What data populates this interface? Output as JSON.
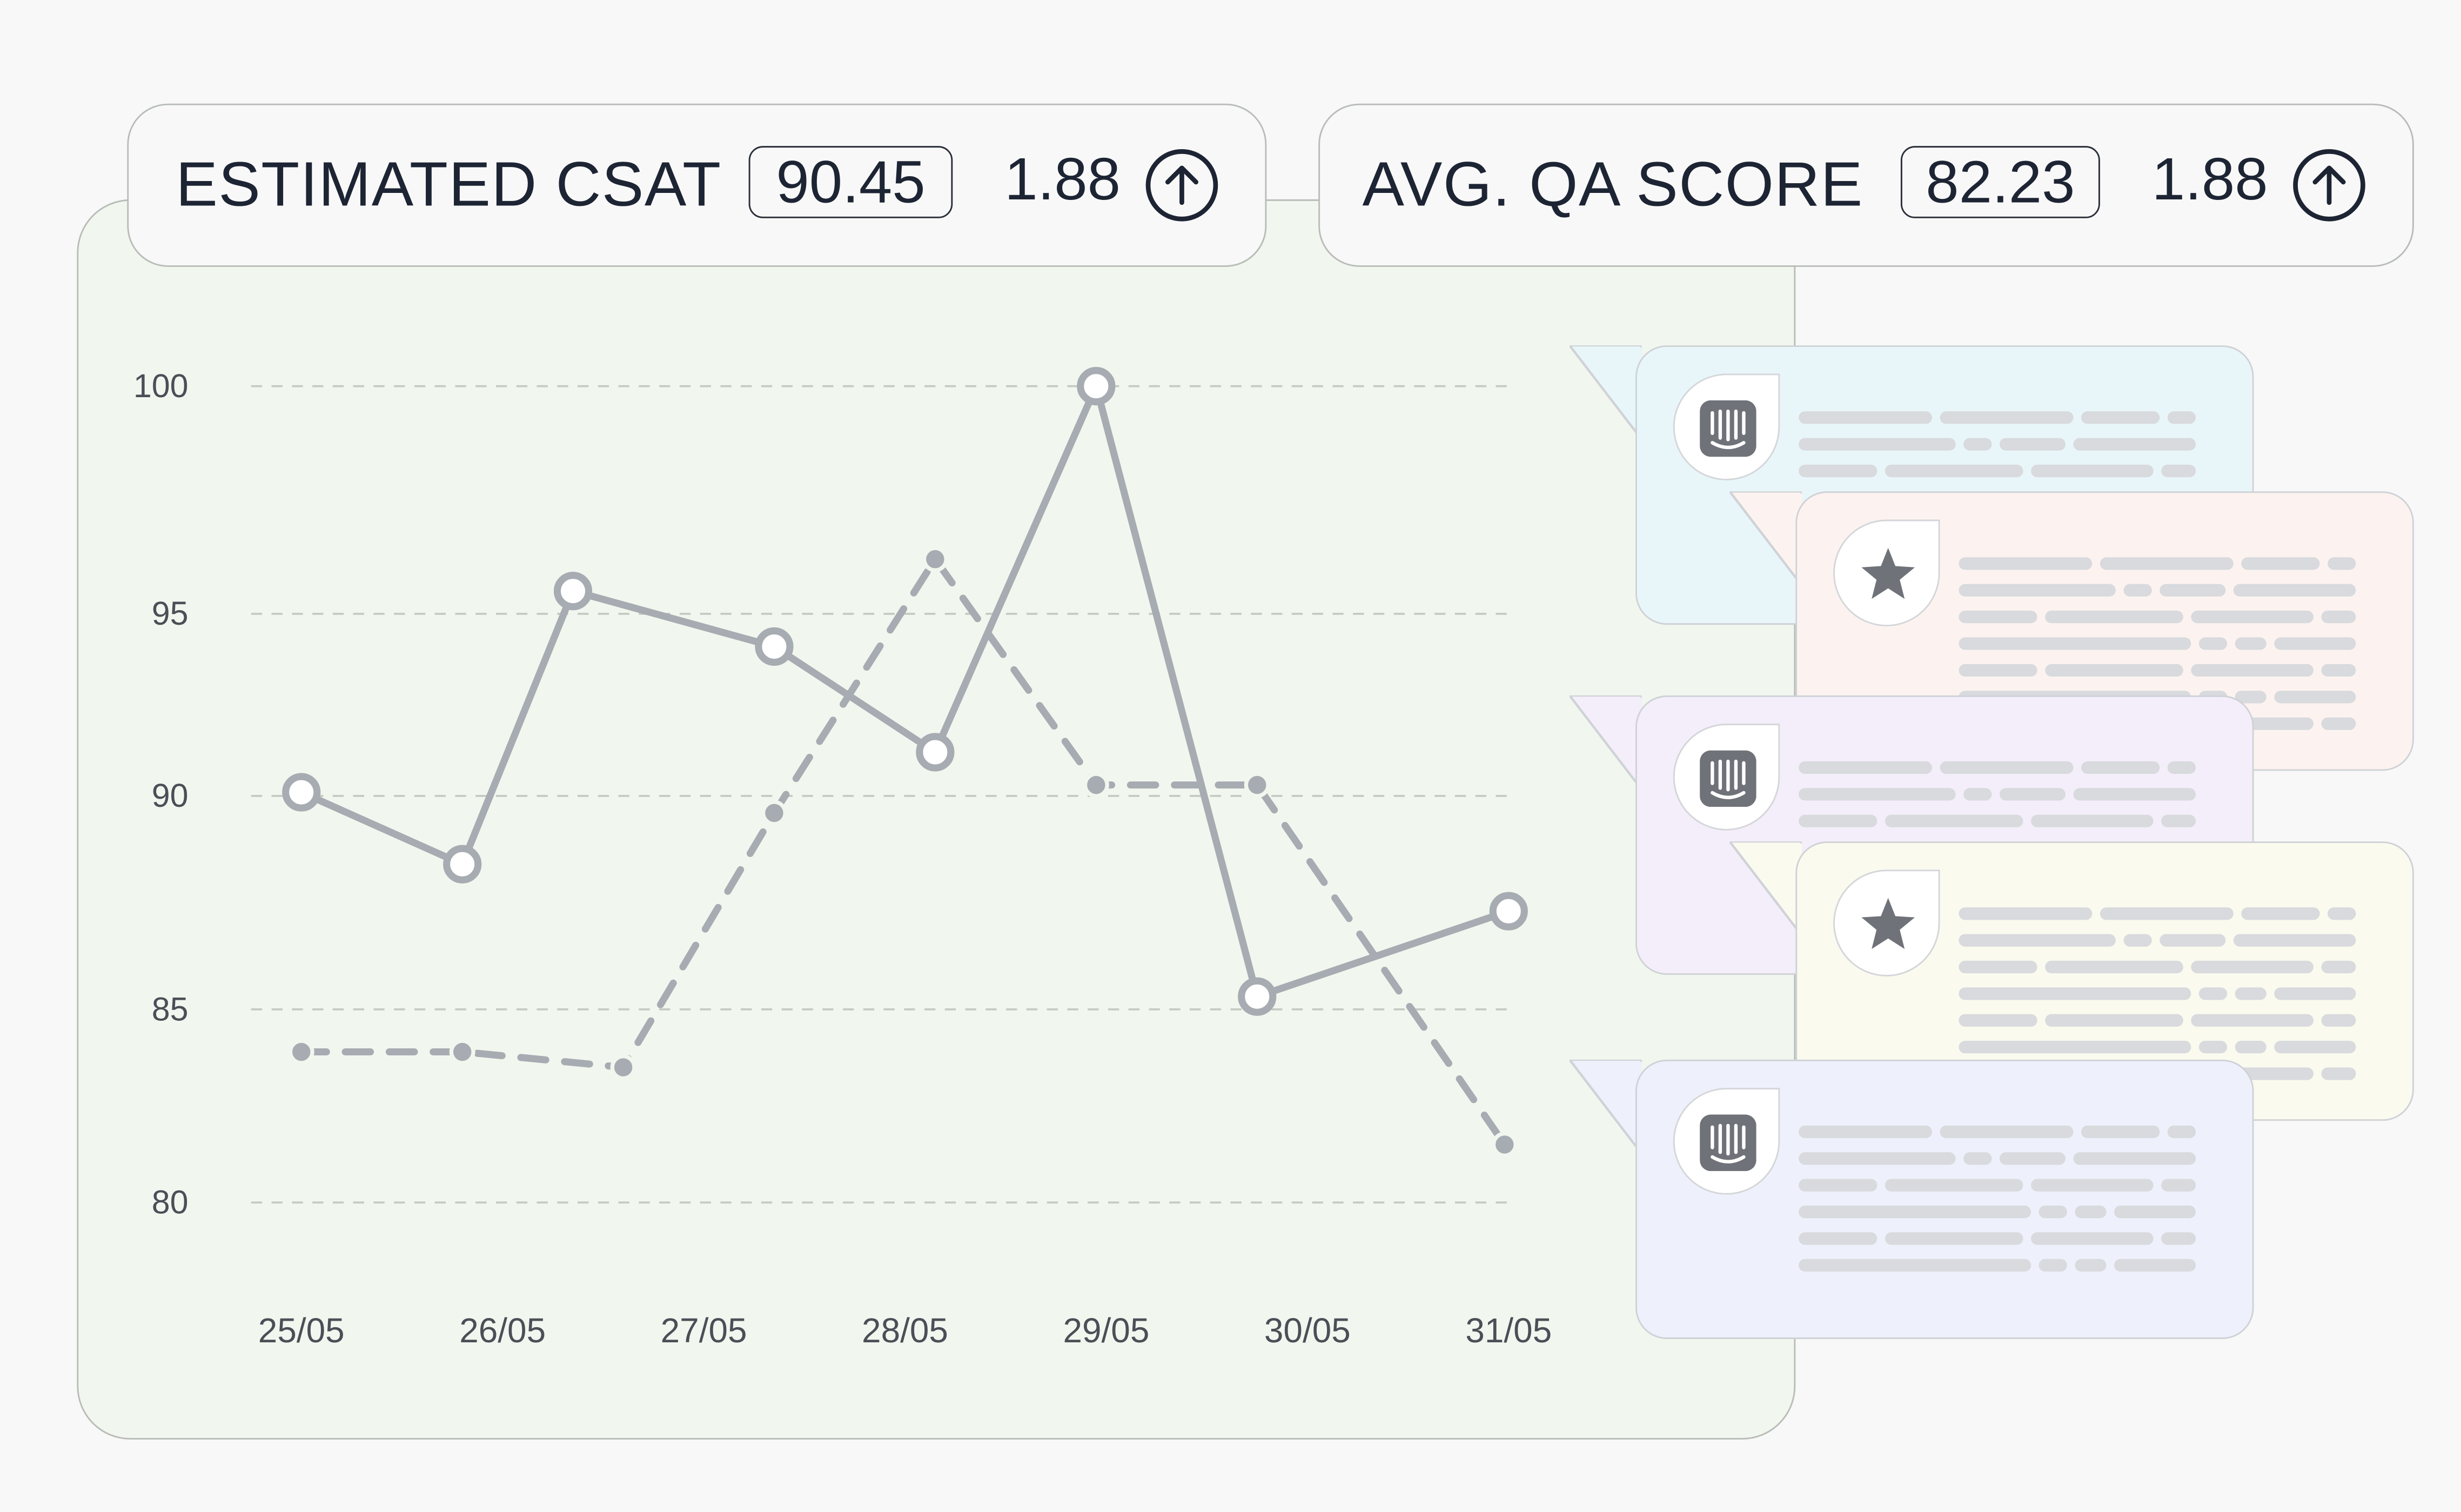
{
  "cards": {
    "csat": {
      "label": "ESTIMATED CSAT",
      "value": "90.45",
      "delta": "1.88"
    },
    "qa": {
      "label": "AVG. QA SCORE",
      "value": "82.23",
      "delta": "1.88"
    }
  },
  "colors": {
    "panel_bg": "#f1f7ee",
    "line": "#a7abb2",
    "grid": "#c4cbc2",
    "text": "#1d2433",
    "bubble_blue": "#e8f6fa",
    "bubble_peach": "#fcf3f0",
    "bubble_lilac": "#f4eefa",
    "bubble_cream": "#fafaef",
    "bubble_periwinkle": "#eef0fb"
  },
  "chart_data": {
    "type": "line",
    "title": "",
    "xlabel": "",
    "ylabel": "",
    "categories": [
      "25/05",
      "26/05",
      "27/05",
      "28/05",
      "29/05",
      "30/05",
      "31/05"
    ],
    "y_ticks": [
      "100",
      "95",
      "90",
      "85",
      "80"
    ],
    "ylim": [
      80,
      100
    ],
    "grid": true,
    "series": [
      {
        "name": "Estimated CSAT",
        "style": "solid",
        "x": [
          0,
          0.8,
          1.35,
          2.35,
          3.15,
          3.95,
          4.75,
          6.0
        ],
        "values": [
          90.1,
          88.4,
          95.5,
          94.1,
          91.2,
          100.0,
          85.3,
          87.3
        ]
      },
      {
        "name": "Avg. QA score",
        "style": "dashed",
        "x": [
          0,
          0.8,
          1.6,
          2.35,
          3.15,
          3.95,
          4.75,
          5.98
        ],
        "values": [
          83.9,
          83.9,
          83.5,
          89.6,
          96.2,
          90.3,
          90.3,
          81.5
        ]
      }
    ]
  },
  "bubbles": [
    {
      "icon": "intercom-icon",
      "color": "bubble_blue"
    },
    {
      "icon": "star-icon",
      "color": "bubble_peach"
    },
    {
      "icon": "intercom-icon",
      "color": "bubble_lilac"
    },
    {
      "icon": "star-icon",
      "color": "bubble_cream"
    },
    {
      "icon": "intercom-icon",
      "color": "bubble_periwinkle"
    }
  ]
}
